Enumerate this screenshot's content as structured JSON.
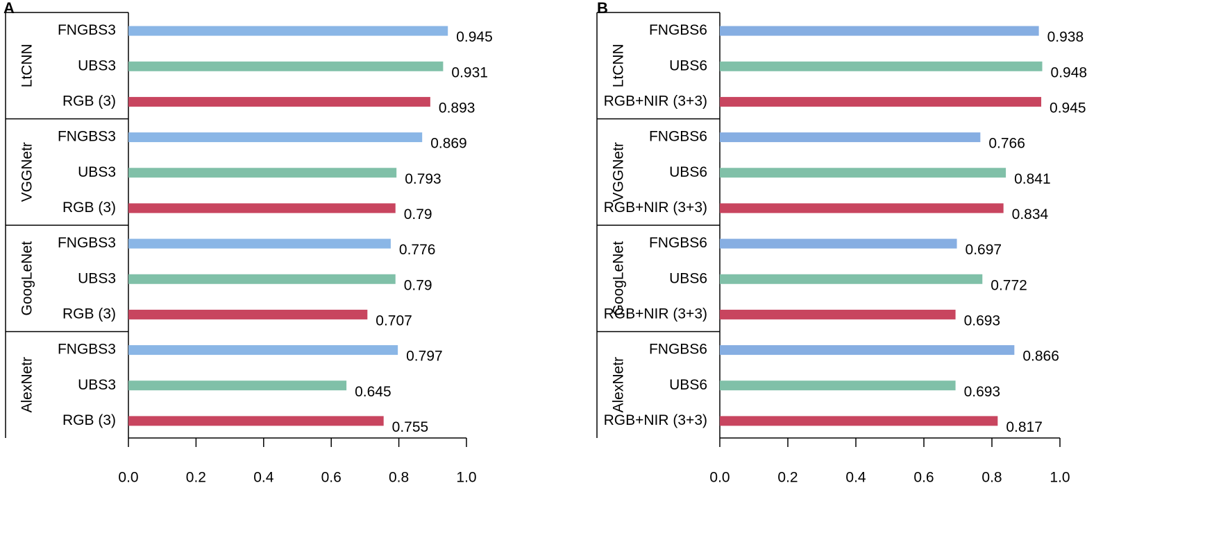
{
  "chart_data": [
    {
      "type": "bar",
      "panel": "A",
      "categories": [
        "LtCNN",
        "VGGNetr",
        "GoogLeNet",
        "AlexNetr"
      ],
      "series": [
        {
          "name": "FNGBS3",
          "color": "#8ab6e6",
          "values": [
            0.945,
            0.869,
            0.776,
            0.797
          ]
        },
        {
          "name": "UBS3",
          "color": "#80c0a8",
          "values": [
            0.931,
            0.793,
            0.79,
            0.645
          ]
        },
        {
          "name": "RGB (3)",
          "color": "#c8455f",
          "values": [
            0.893,
            0.79,
            0.707,
            0.755
          ]
        }
      ],
      "xlim": [
        0,
        1
      ],
      "xticks": [
        {
          "value": 0,
          "label": "0.0"
        },
        0.2,
        0.4,
        0.6,
        0.8,
        {
          "value": 1,
          "label": "1.0"
        }
      ]
    },
    {
      "type": "bar",
      "panel": "B",
      "categories": [
        "LtCNN",
        "VGGNetr",
        "GoogLeNet",
        "AlexNetr"
      ],
      "series": [
        {
          "name": "FNGBS6",
          "color": "#86aee2",
          "values": [
            0.938,
            0.766,
            0.697,
            0.866
          ]
        },
        {
          "name": "UBS6",
          "color": "#80c0a8",
          "values": [
            0.948,
            0.841,
            0.772,
            0.693
          ]
        },
        {
          "name": "RGB+NIR (3+3)",
          "color": "#c8455f",
          "values": [
            0.945,
            0.834,
            0.693,
            0.817
          ]
        }
      ],
      "xlim": [
        0,
        1
      ],
      "xticks": [
        {
          "value": 0,
          "label": "0.0"
        },
        0.2,
        0.4,
        0.6,
        0.8,
        {
          "value": 1,
          "label": "1.0"
        }
      ]
    }
  ]
}
